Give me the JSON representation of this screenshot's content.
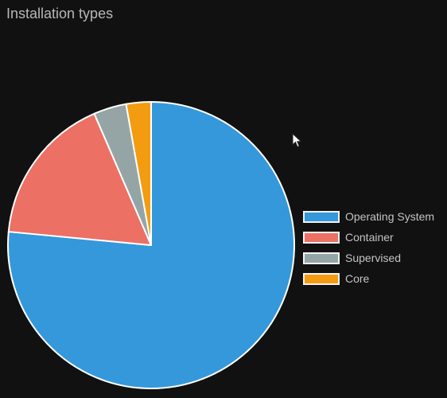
{
  "chart_data": {
    "type": "pie",
    "title": "Installation types",
    "categories": [
      "Operating System",
      "Container",
      "Supervised",
      "Core"
    ],
    "values": [
      76.5,
      17.0,
      3.7,
      2.8
    ],
    "colors": [
      "#3498db",
      "#ec7064",
      "#95a5a6",
      "#f39c12"
    ],
    "start_angle": "12 o'clock",
    "direction": "clockwise",
    "legend": "right"
  },
  "cursor": {
    "icon": "mouse-pointer-icon"
  }
}
